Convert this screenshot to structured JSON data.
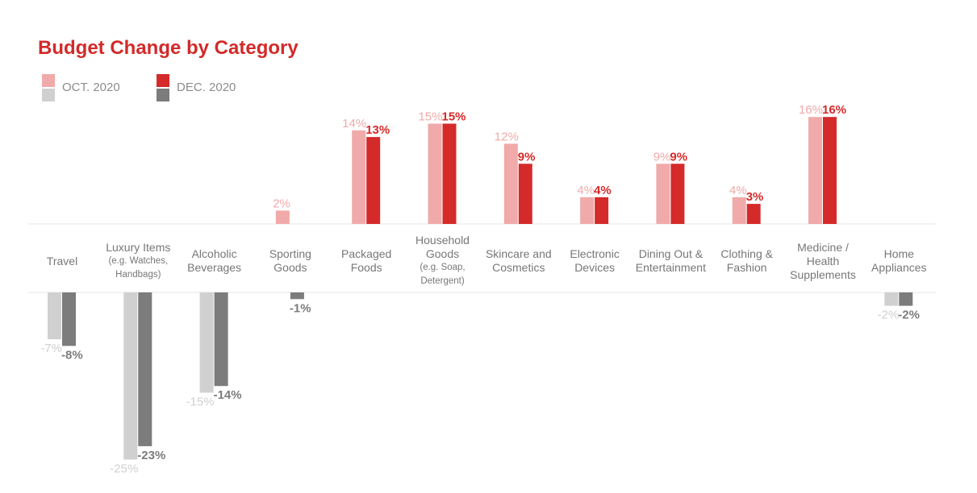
{
  "chart_data": {
    "type": "bar",
    "title": "Budget Change by Category",
    "legend": [
      {
        "name": "OCT. 2020",
        "positive_color": "#f0aaa9",
        "negative_color": "#d0d0d0"
      },
      {
        "name": "DEC. 2020",
        "positive_color": "#d52a2a",
        "negative_color": "#7c7c7c"
      }
    ],
    "categories": [
      {
        "label": "Travel",
        "sub": ""
      },
      {
        "label": "Luxury Items",
        "sub": "(e.g. Watches, Handbags)"
      },
      {
        "label": "Alcoholic Beverages",
        "sub": ""
      },
      {
        "label": "Sporting Goods",
        "sub": ""
      },
      {
        "label": "Packaged Foods",
        "sub": ""
      },
      {
        "label": "Household Goods",
        "sub": "(e.g. Soap, Detergent)"
      },
      {
        "label": "Skincare and Cosmetics",
        "sub": ""
      },
      {
        "label": "Electronic Devices",
        "sub": ""
      },
      {
        "label": "Dining Out & Entertainment",
        "sub": ""
      },
      {
        "label": "Clothing & Fashion",
        "sub": ""
      },
      {
        "label": "Medicine / Health Supplements",
        "sub": ""
      },
      {
        "label": "Home Appliances",
        "sub": ""
      }
    ],
    "series": [
      {
        "name": "OCT. 2020",
        "values": [
          -7,
          -25,
          -15,
          2,
          14,
          15,
          12,
          4,
          9,
          4,
          16,
          -2
        ],
        "labels": [
          "-7%",
          "-25%",
          "-15%",
          "2%",
          "14%",
          "15%",
          "12%",
          "4%",
          "9%",
          "4%",
          "16%",
          "-2%"
        ]
      },
      {
        "name": "DEC. 2020",
        "values": [
          -8,
          -23,
          -14,
          -1,
          13,
          15,
          9,
          4,
          9,
          3,
          16,
          -2
        ],
        "labels": [
          "-8%",
          "-23%",
          "-14%",
          "-1%",
          "13%",
          "15%",
          "9%",
          "4%",
          "9%",
          "3%",
          "16%",
          "-2%"
        ]
      }
    ],
    "unit": "%"
  }
}
